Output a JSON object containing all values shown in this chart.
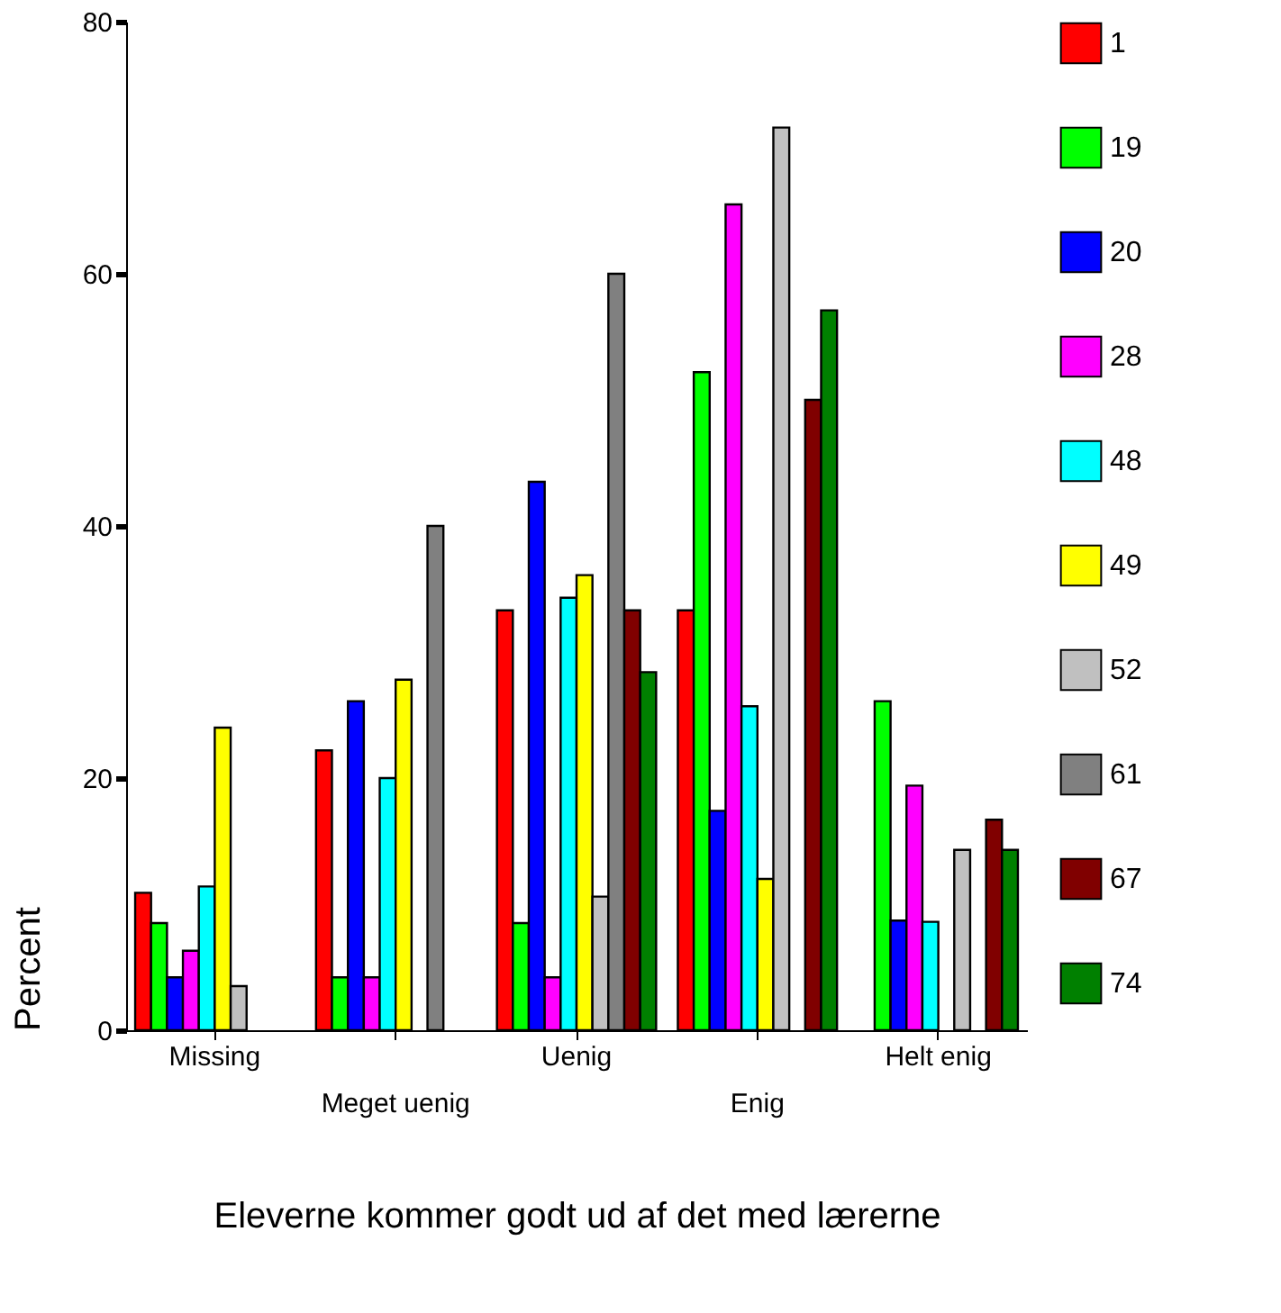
{
  "chart_data": {
    "type": "bar",
    "xlabel": "Eleverne kommer godt ud af det med lærerne",
    "ylabel": "Percent",
    "categories": [
      "Missing",
      "Meget uenig",
      "Uenig",
      "Enig",
      "Helt enig"
    ],
    "series": [
      {
        "name": "1",
        "color": "#ff0000",
        "values": [
          10.9,
          22.2,
          33.3,
          33.3,
          null
        ]
      },
      {
        "name": "19",
        "color": "#00ff00",
        "values": [
          8.5,
          4.2,
          8.5,
          52.2,
          26.1
        ]
      },
      {
        "name": "20",
        "color": "#0000ff",
        "values": [
          4.2,
          26.1,
          43.5,
          17.4,
          8.7
        ]
      },
      {
        "name": "28",
        "color": "#ff00ff",
        "values": [
          6.3,
          4.2,
          4.2,
          65.5,
          19.4
        ]
      },
      {
        "name": "48",
        "color": "#00ffff",
        "values": [
          11.4,
          20.0,
          34.3,
          25.7,
          8.6
        ]
      },
      {
        "name": "49",
        "color": "#ffff00",
        "values": [
          24.0,
          27.8,
          36.1,
          12.0,
          null
        ]
      },
      {
        "name": "52",
        "color": "#c0c0c0",
        "values": [
          3.5,
          null,
          10.6,
          71.6,
          14.3
        ]
      },
      {
        "name": "61",
        "color": "#808080",
        "values": [
          null,
          40.0,
          60.0,
          null,
          null
        ]
      },
      {
        "name": "67",
        "color": "#800000",
        "values": [
          null,
          null,
          33.3,
          50.0,
          16.7
        ]
      },
      {
        "name": "74",
        "color": "#008000",
        "values": [
          null,
          null,
          28.4,
          57.1,
          14.3
        ]
      }
    ],
    "ylim": [
      0,
      80
    ],
    "yticks": [
      0,
      20,
      40,
      60,
      80
    ],
    "grid": false,
    "legend": "right"
  }
}
